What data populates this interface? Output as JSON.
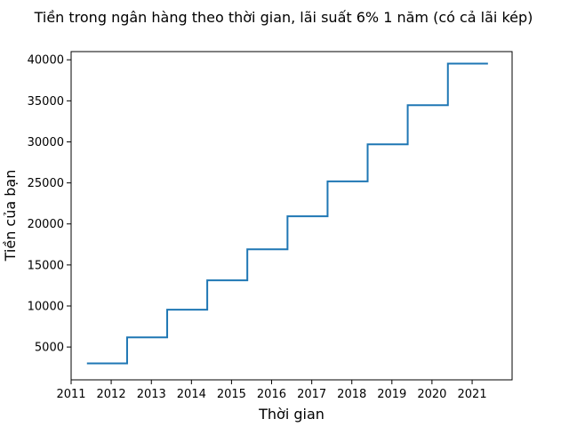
{
  "chart_data": {
    "type": "line",
    "step": "post",
    "title": "Tiền trong ngân hàng theo thời gian, lãi suất 6% 1 năm (có cả lãi kép)",
    "xlabel": "Thời gian",
    "ylabel": "Tiền của bạn",
    "x_ticks": [
      "2011",
      "2012",
      "2013",
      "2014",
      "2015",
      "2016",
      "2017",
      "2018",
      "2019",
      "2020",
      "2021"
    ],
    "y_ticks": [
      5000,
      10000,
      15000,
      20000,
      25000,
      30000,
      35000,
      40000
    ],
    "xlim": [
      "2011-01-01",
      "2021-12-31"
    ],
    "ylim": [
      1000,
      41000
    ],
    "series": [
      {
        "color": "#1f77b4",
        "points": [
          {
            "x": "2011-05-25",
            "y": 3000
          },
          {
            "x": "2012-05-25",
            "y": 6180
          },
          {
            "x": "2013-05-25",
            "y": 9550.8
          },
          {
            "x": "2014-05-25",
            "y": 13123.85
          },
          {
            "x": "2015-05-25",
            "y": 16911.28
          },
          {
            "x": "2016-05-25",
            "y": 20925.96
          },
          {
            "x": "2017-05-25",
            "y": 25181.52
          },
          {
            "x": "2018-05-25",
            "y": 29692.41
          },
          {
            "x": "2019-05-25",
            "y": 34473.95
          },
          {
            "x": "2020-05-25",
            "y": 39542.39
          },
          {
            "x": "2021-05-25",
            "y": 39542.39
          }
        ]
      }
    ],
    "grid": false,
    "legend": "none"
  }
}
